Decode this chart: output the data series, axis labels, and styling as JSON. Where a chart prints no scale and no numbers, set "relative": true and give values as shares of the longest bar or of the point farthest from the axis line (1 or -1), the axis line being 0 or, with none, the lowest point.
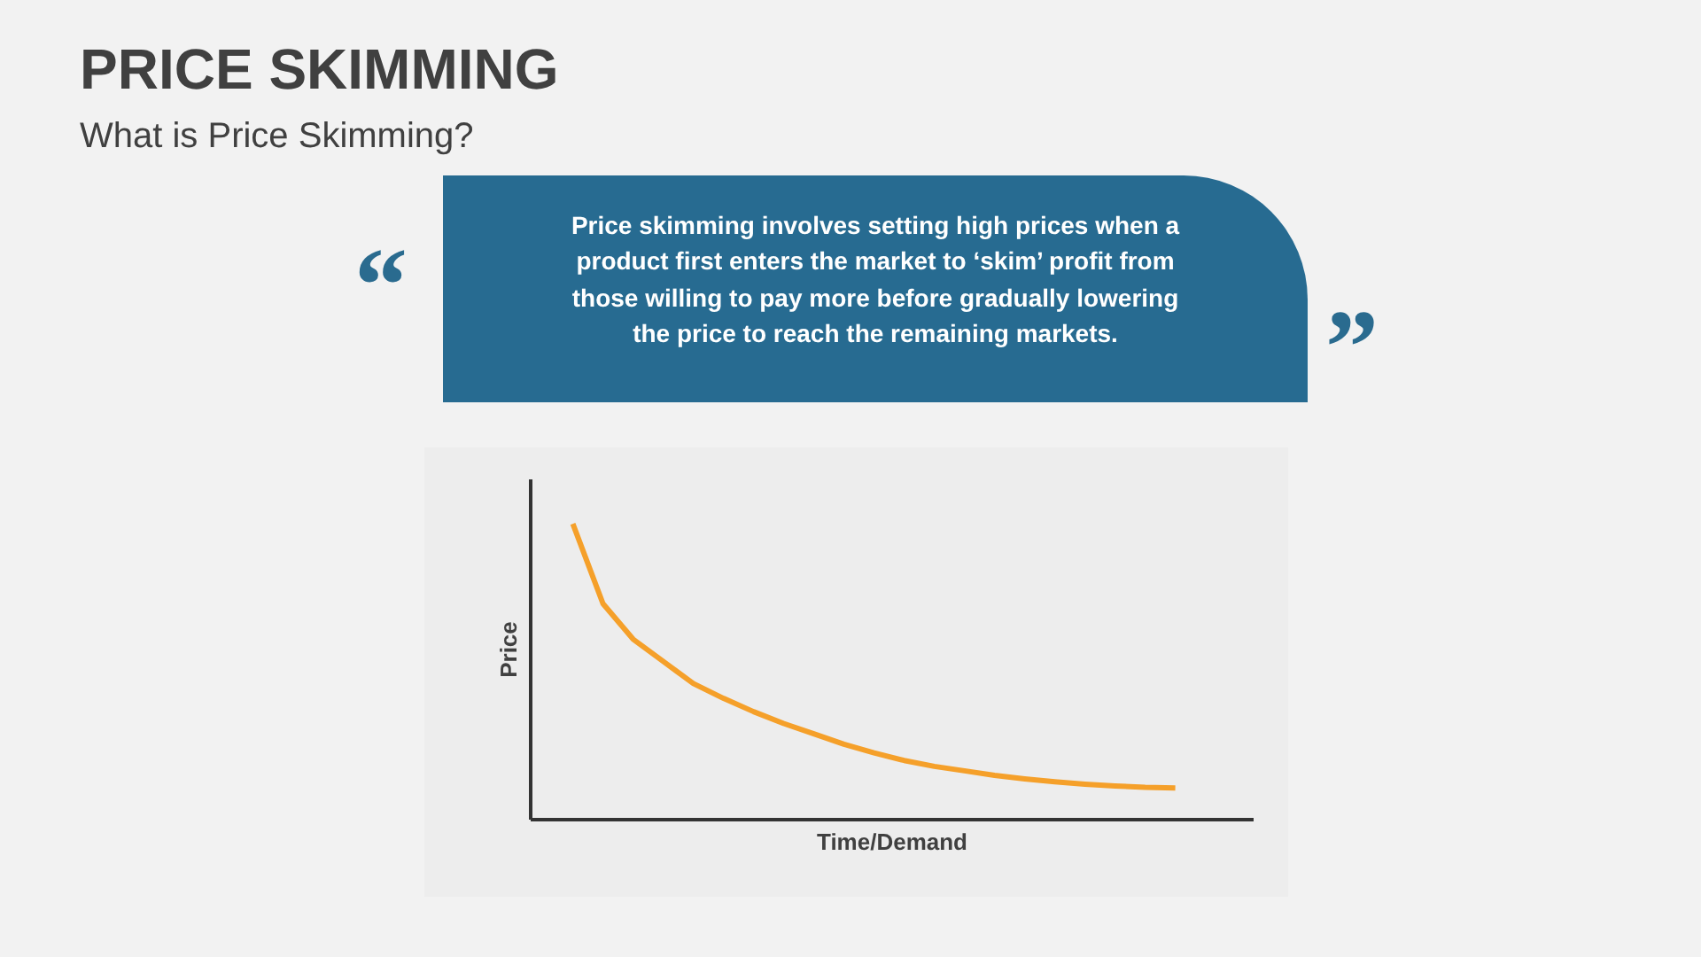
{
  "chart_data": {
    "type": "line",
    "title": "PRICE SKIMMING",
    "subtitle": "What is Price Skimming?",
    "annotations": [
      "“",
      "Price skimming involves setting high prices when a product first enters the market to ‘skim’ profit from those willing to pay more before gradually lowering the price to reach the remaining markets.",
      "”"
    ],
    "xlabel": "Time/Demand",
    "ylabel": "Price",
    "relative": true,
    "marker": "none",
    "line_style": "solid",
    "categories": [
      null,
      null,
      null,
      null,
      null,
      null,
      null,
      null,
      null,
      null,
      null,
      null,
      null,
      null,
      null,
      null,
      null,
      null,
      null,
      null,
      null
    ],
    "series": [
      {
        "color": "#f5a02a",
        "values": [
          1.0,
          0.73,
          0.61,
          0.535,
          0.46,
          0.41,
          0.365,
          0.325,
          0.29,
          0.255,
          0.226,
          0.2,
          0.18,
          0.165,
          0.15,
          0.138,
          0.128,
          0.12,
          0.114,
          0.109,
          0.107
        ]
      }
    ]
  }
}
